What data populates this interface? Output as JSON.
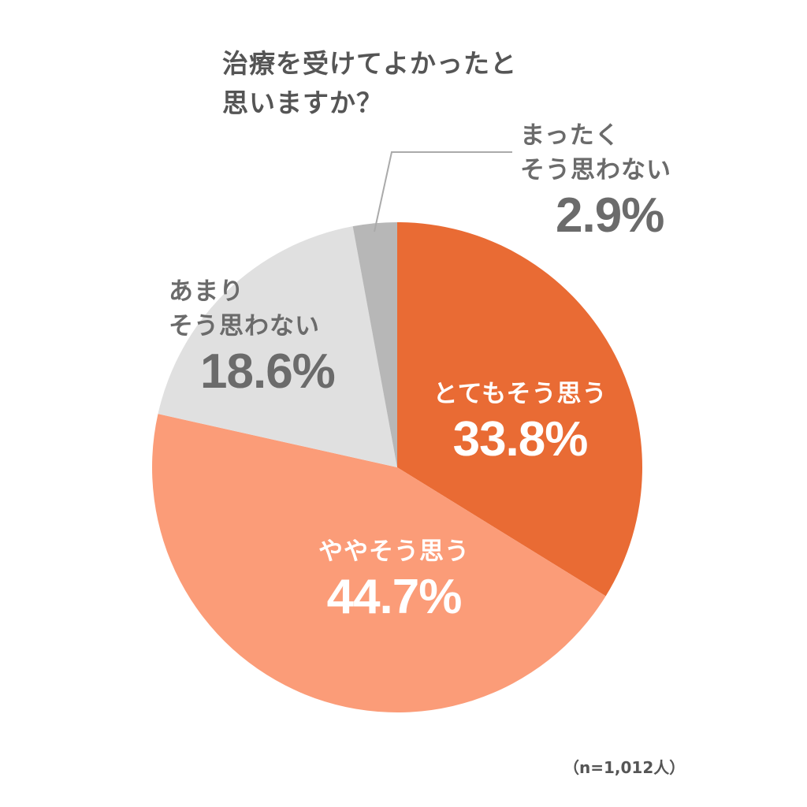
{
  "title_lines": [
    "治療を受けてよかったと",
    "思いますか？"
  ],
  "sample_note": "（n=1,012人）",
  "chart_data": {
    "type": "pie",
    "title": "治療を受けてよかったと思いますか？",
    "start_angle_deg": 0,
    "direction": "clockwise",
    "categories": [
      "とてもそう思う",
      "ややそう思う",
      "あまりそう思わない",
      "まったくそう思わない"
    ],
    "values": [
      33.8,
      44.7,
      18.6,
      2.9
    ],
    "unit": "%",
    "colors": [
      "#e96b34",
      "#fb9c78",
      "#e0e0e0",
      "#b7b7b7"
    ],
    "n": "1,012人",
    "legend": "none (inline labels)"
  },
  "labels": {
    "s0": {
      "text": "とてもそう思う",
      "value": "33.8%"
    },
    "s1": {
      "text": "ややそう思う",
      "value": "44.7%"
    },
    "s2": {
      "line1": "あまり",
      "line2": "そう思わない",
      "value": "18.6%"
    },
    "s3": {
      "line1": "まったく",
      "line2": "そう思わない",
      "value": "2.9%"
    }
  }
}
